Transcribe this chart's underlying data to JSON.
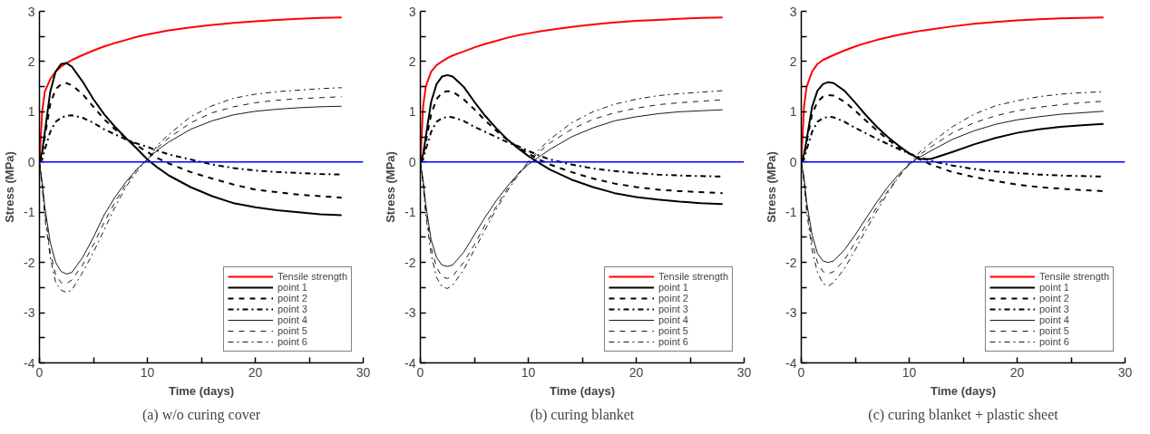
{
  "chart_data": [
    {
      "type": "line",
      "xlabel": "Time (days)",
      "ylabel": "Stress (MPa)",
      "annotations": [
        "(a) w/o curing cover"
      ],
      "legend": "bottom right",
      "grid": false,
      "marker": "none",
      "xlim": [
        0,
        30
      ],
      "xticks": [
        0,
        {
          "value": 5,
          "label": null
        },
        10,
        {
          "value": 15,
          "label": null
        },
        20,
        {
          "value": 25,
          "label": null
        },
        30
      ],
      "ylim": [
        -4,
        3
      ],
      "yticks": [
        -4,
        {
          "value": -3.5,
          "label": null
        },
        -3,
        {
          "value": -2.5,
          "label": null
        },
        -2,
        {
          "value": -1.5,
          "label": null
        },
        -1,
        {
          "value": -0.5,
          "label": null
        },
        0,
        {
          "value": 0.5,
          "label": null
        },
        1,
        {
          "value": 1.5,
          "label": null
        },
        2,
        {
          "value": 2.5,
          "label": null
        },
        3
      ],
      "ref_lines": [
        {
          "axis": "y",
          "value": 0,
          "color": "#0000ff",
          "line_style": "solid"
        }
      ],
      "x": [
        0,
        0.25,
        0.5,
        1,
        1.5,
        2,
        2.5,
        3,
        4,
        5,
        6,
        7,
        8,
        9,
        10,
        11,
        12,
        14,
        16,
        18,
        20,
        22,
        24,
        26,
        28
      ],
      "series": [
        {
          "name": "Tensile strength",
          "color": "#ff0000",
          "line_style": "solid",
          "values": [
            0,
            1.0,
            1.4,
            1.65,
            1.8,
            1.9,
            1.97,
            2.03,
            2.13,
            2.22,
            2.3,
            2.37,
            2.43,
            2.49,
            2.54,
            2.58,
            2.62,
            2.68,
            2.73,
            2.77,
            2.8,
            2.83,
            2.85,
            2.87,
            2.88
          ]
        },
        {
          "name": "point 1",
          "color": "#000000",
          "line_style": "solid",
          "values": [
            0,
            0.2,
            0.6,
            1.4,
            1.8,
            1.95,
            1.97,
            1.9,
            1.6,
            1.25,
            0.95,
            0.7,
            0.48,
            0.27,
            0.05,
            -0.12,
            -0.27,
            -0.5,
            -0.68,
            -0.82,
            -0.9,
            -0.96,
            -1.0,
            -1.04,
            -1.06
          ]
        },
        {
          "name": "point 2",
          "color": "#000000",
          "line_style": "dashed",
          "values": [
            0,
            0.15,
            0.5,
            1.15,
            1.45,
            1.55,
            1.57,
            1.53,
            1.35,
            1.1,
            0.85,
            0.65,
            0.48,
            0.33,
            0.2,
            0.07,
            -0.03,
            -0.2,
            -0.33,
            -0.45,
            -0.55,
            -0.6,
            -0.65,
            -0.68,
            -0.71
          ]
        },
        {
          "name": "point 3",
          "color": "#000000",
          "line_style": "dashdot",
          "values": [
            0,
            0.05,
            0.25,
            0.6,
            0.8,
            0.88,
            0.92,
            0.93,
            0.88,
            0.78,
            0.65,
            0.55,
            0.45,
            0.37,
            0.3,
            0.22,
            0.15,
            0.05,
            -0.05,
            -0.12,
            -0.17,
            -0.2,
            -0.22,
            -0.24,
            -0.25
          ]
        },
        {
          "name": "point 4",
          "color": "#000000",
          "line_style": "solid",
          "values": [
            0,
            -0.4,
            -0.9,
            -1.6,
            -2.0,
            -2.18,
            -2.23,
            -2.2,
            -1.9,
            -1.5,
            -1.05,
            -0.7,
            -0.4,
            -0.15,
            0.05,
            0.25,
            0.4,
            0.65,
            0.82,
            0.94,
            1.01,
            1.05,
            1.08,
            1.1,
            1.11
          ]
        },
        {
          "name": "point 5",
          "color": "#000000",
          "line_style": "dashed",
          "values": [
            0,
            -0.45,
            -1.0,
            -1.8,
            -2.25,
            -2.4,
            -2.42,
            -2.35,
            -2.05,
            -1.65,
            -1.2,
            -0.8,
            -0.45,
            -0.15,
            0.05,
            0.3,
            0.48,
            0.78,
            0.98,
            1.1,
            1.18,
            1.23,
            1.26,
            1.28,
            1.3
          ]
        },
        {
          "name": "point 6",
          "color": "#000000",
          "line_style": "dashdot",
          "values": [
            0,
            -0.5,
            -1.1,
            -1.9,
            -2.4,
            -2.55,
            -2.6,
            -2.55,
            -2.2,
            -1.8,
            -1.35,
            -0.9,
            -0.5,
            -0.2,
            0.05,
            0.35,
            0.55,
            0.9,
            1.12,
            1.27,
            1.35,
            1.4,
            1.43,
            1.46,
            1.48
          ]
        }
      ]
    },
    {
      "type": "line",
      "xlabel": "Time (days)",
      "ylabel": "Stress (MPa)",
      "annotations": [
        "(b) curing blanket"
      ],
      "legend": "bottom right",
      "grid": false,
      "marker": "none",
      "xlim": [
        0,
        30
      ],
      "xticks": [
        0,
        {
          "value": 5,
          "label": null
        },
        10,
        {
          "value": 15,
          "label": null
        },
        20,
        {
          "value": 25,
          "label": null
        },
        30
      ],
      "ylim": [
        -4,
        3
      ],
      "yticks": [
        -4,
        {
          "value": -3.5,
          "label": null
        },
        -3,
        {
          "value": -2.5,
          "label": null
        },
        -2,
        {
          "value": -1.5,
          "label": null
        },
        -1,
        {
          "value": -0.5,
          "label": null
        },
        0,
        {
          "value": 0.5,
          "label": null
        },
        1,
        {
          "value": 1.5,
          "label": null
        },
        2,
        {
          "value": 2.5,
          "label": null
        },
        3
      ],
      "ref_lines": [
        {
          "axis": "y",
          "value": 0,
          "color": "#0000ff",
          "line_style": "solid"
        }
      ],
      "x": [
        0,
        0.25,
        0.5,
        1,
        1.5,
        2,
        2.5,
        3,
        4,
        5,
        6,
        7,
        8,
        9,
        10,
        11,
        12,
        14,
        16,
        18,
        20,
        22,
        24,
        26,
        28
      ],
      "series": [
        {
          "name": "Tensile strength",
          "color": "#ff0000",
          "line_style": "solid",
          "values": [
            0,
            1.1,
            1.5,
            1.8,
            1.93,
            2.0,
            2.07,
            2.12,
            2.2,
            2.28,
            2.35,
            2.41,
            2.47,
            2.52,
            2.56,
            2.6,
            2.63,
            2.69,
            2.74,
            2.78,
            2.81,
            2.83,
            2.85,
            2.87,
            2.88
          ]
        },
        {
          "name": "point 1",
          "color": "#000000",
          "line_style": "solid",
          "values": [
            0,
            0.15,
            0.5,
            1.2,
            1.55,
            1.7,
            1.73,
            1.7,
            1.5,
            1.2,
            0.92,
            0.68,
            0.46,
            0.28,
            0.12,
            -0.02,
            -0.15,
            -0.35,
            -0.5,
            -0.62,
            -0.7,
            -0.75,
            -0.79,
            -0.82,
            -0.84
          ]
        },
        {
          "name": "point 2",
          "color": "#000000",
          "line_style": "dashed",
          "values": [
            0,
            0.1,
            0.4,
            0.95,
            1.25,
            1.38,
            1.41,
            1.4,
            1.25,
            1.05,
            0.83,
            0.63,
            0.45,
            0.3,
            0.17,
            0.05,
            -0.05,
            -0.2,
            -0.33,
            -0.43,
            -0.5,
            -0.55,
            -0.58,
            -0.6,
            -0.62
          ]
        },
        {
          "name": "point 3",
          "color": "#000000",
          "line_style": "dashdot",
          "values": [
            0,
            0.05,
            0.25,
            0.6,
            0.8,
            0.87,
            0.9,
            0.89,
            0.82,
            0.7,
            0.6,
            0.5,
            0.4,
            0.32,
            0.22,
            0.13,
            0.05,
            -0.05,
            -0.13,
            -0.18,
            -0.22,
            -0.25,
            -0.27,
            -0.28,
            -0.29
          ]
        },
        {
          "name": "point 4",
          "color": "#000000",
          "line_style": "solid",
          "values": [
            0,
            -0.35,
            -0.85,
            -1.55,
            -1.9,
            -2.05,
            -2.08,
            -2.05,
            -1.8,
            -1.45,
            -1.1,
            -0.78,
            -0.5,
            -0.25,
            -0.05,
            0.1,
            0.25,
            0.5,
            0.68,
            0.82,
            0.9,
            0.96,
            1.0,
            1.02,
            1.04
          ]
        },
        {
          "name": "point 5",
          "color": "#000000",
          "line_style": "dashed",
          "values": [
            0,
            -0.4,
            -0.95,
            -1.7,
            -2.1,
            -2.28,
            -2.32,
            -2.27,
            -2.0,
            -1.65,
            -1.25,
            -0.9,
            -0.55,
            -0.25,
            0.0,
            0.2,
            0.38,
            0.65,
            0.85,
            0.98,
            1.07,
            1.14,
            1.18,
            1.21,
            1.24
          ]
        },
        {
          "name": "point 6",
          "color": "#000000",
          "line_style": "dashdot",
          "values": [
            0,
            -0.45,
            -1.05,
            -1.85,
            -2.3,
            -2.48,
            -2.52,
            -2.45,
            -2.15,
            -1.75,
            -1.35,
            -0.95,
            -0.6,
            -0.28,
            0.0,
            0.25,
            0.45,
            0.78,
            1.0,
            1.15,
            1.25,
            1.32,
            1.36,
            1.39,
            1.42
          ]
        }
      ]
    },
    {
      "type": "line",
      "xlabel": "Time (days)",
      "ylabel": "Stress (MPa)",
      "annotations": [
        "(c) curing blanket + plastic sheet"
      ],
      "legend": "bottom right",
      "grid": false,
      "marker": "none",
      "xlim": [
        0,
        30
      ],
      "xticks": [
        0,
        {
          "value": 5,
          "label": null
        },
        10,
        {
          "value": 15,
          "label": null
        },
        20,
        {
          "value": 25,
          "label": null
        },
        30
      ],
      "ylim": [
        -4,
        3
      ],
      "yticks": [
        -4,
        {
          "value": -3.5,
          "label": null
        },
        -3,
        {
          "value": -2.5,
          "label": null
        },
        -2,
        {
          "value": -1.5,
          "label": null
        },
        -1,
        {
          "value": -0.5,
          "label": null
        },
        0,
        {
          "value": 0.5,
          "label": null
        },
        1,
        {
          "value": 1.5,
          "label": null
        },
        2,
        {
          "value": 2.5,
          "label": null
        },
        3
      ],
      "ref_lines": [
        {
          "axis": "y",
          "value": 0,
          "color": "#0000ff",
          "line_style": "solid"
        }
      ],
      "x": [
        0,
        0.25,
        0.5,
        1,
        1.5,
        2,
        2.5,
        3,
        4,
        5,
        6,
        7,
        8,
        9,
        10,
        11,
        12,
        14,
        16,
        18,
        20,
        22,
        24,
        26,
        28
      ],
      "series": [
        {
          "name": "Tensile strength",
          "color": "#ff0000",
          "line_style": "solid",
          "values": [
            0,
            1.1,
            1.5,
            1.8,
            1.95,
            2.03,
            2.08,
            2.13,
            2.22,
            2.3,
            2.37,
            2.43,
            2.48,
            2.53,
            2.57,
            2.61,
            2.64,
            2.7,
            2.75,
            2.79,
            2.82,
            2.84,
            2.86,
            2.87,
            2.88
          ]
        },
        {
          "name": "point 1",
          "color": "#000000",
          "line_style": "solid",
          "values": [
            0,
            0.15,
            0.45,
            1.1,
            1.42,
            1.55,
            1.59,
            1.57,
            1.42,
            1.18,
            0.93,
            0.7,
            0.5,
            0.33,
            0.17,
            0.06,
            0.06,
            0.2,
            0.35,
            0.48,
            0.58,
            0.65,
            0.7,
            0.73,
            0.76
          ]
        },
        {
          "name": "point 2",
          "color": "#000000",
          "line_style": "dashed",
          "values": [
            0,
            0.1,
            0.4,
            0.95,
            1.2,
            1.3,
            1.33,
            1.32,
            1.2,
            1.02,
            0.82,
            0.63,
            0.45,
            0.3,
            0.17,
            0.05,
            -0.05,
            -0.2,
            -0.3,
            -0.38,
            -0.45,
            -0.5,
            -0.53,
            -0.56,
            -0.58
          ]
        },
        {
          "name": "point 3",
          "color": "#000000",
          "line_style": "dashdot",
          "values": [
            0,
            0.05,
            0.25,
            0.6,
            0.8,
            0.87,
            0.9,
            0.89,
            0.8,
            0.68,
            0.57,
            0.46,
            0.36,
            0.26,
            0.17,
            0.09,
            0.02,
            -0.07,
            -0.14,
            -0.19,
            -0.22,
            -0.25,
            -0.27,
            -0.28,
            -0.29
          ]
        },
        {
          "name": "point 4",
          "color": "#000000",
          "line_style": "solid",
          "values": [
            0,
            -0.3,
            -0.8,
            -1.45,
            -1.82,
            -1.97,
            -2.0,
            -1.97,
            -1.75,
            -1.45,
            -1.12,
            -0.8,
            -0.5,
            -0.25,
            -0.05,
            0.1,
            0.22,
            0.45,
            0.62,
            0.75,
            0.84,
            0.9,
            0.95,
            0.98,
            1.01
          ]
        },
        {
          "name": "point 5",
          "color": "#000000",
          "line_style": "dashed",
          "values": [
            0,
            -0.35,
            -0.9,
            -1.6,
            -2.0,
            -2.18,
            -2.23,
            -2.18,
            -1.95,
            -1.6,
            -1.25,
            -0.9,
            -0.58,
            -0.3,
            -0.05,
            0.15,
            0.3,
            0.58,
            0.78,
            0.92,
            1.02,
            1.09,
            1.14,
            1.18,
            1.21
          ]
        },
        {
          "name": "point 6",
          "color": "#000000",
          "line_style": "dashdot",
          "values": [
            0,
            -0.4,
            -1.0,
            -1.75,
            -2.2,
            -2.42,
            -2.47,
            -2.4,
            -2.12,
            -1.75,
            -1.35,
            -0.98,
            -0.62,
            -0.3,
            -0.02,
            0.2,
            0.38,
            0.7,
            0.95,
            1.12,
            1.22,
            1.3,
            1.35,
            1.38,
            1.4
          ]
        }
      ]
    }
  ]
}
